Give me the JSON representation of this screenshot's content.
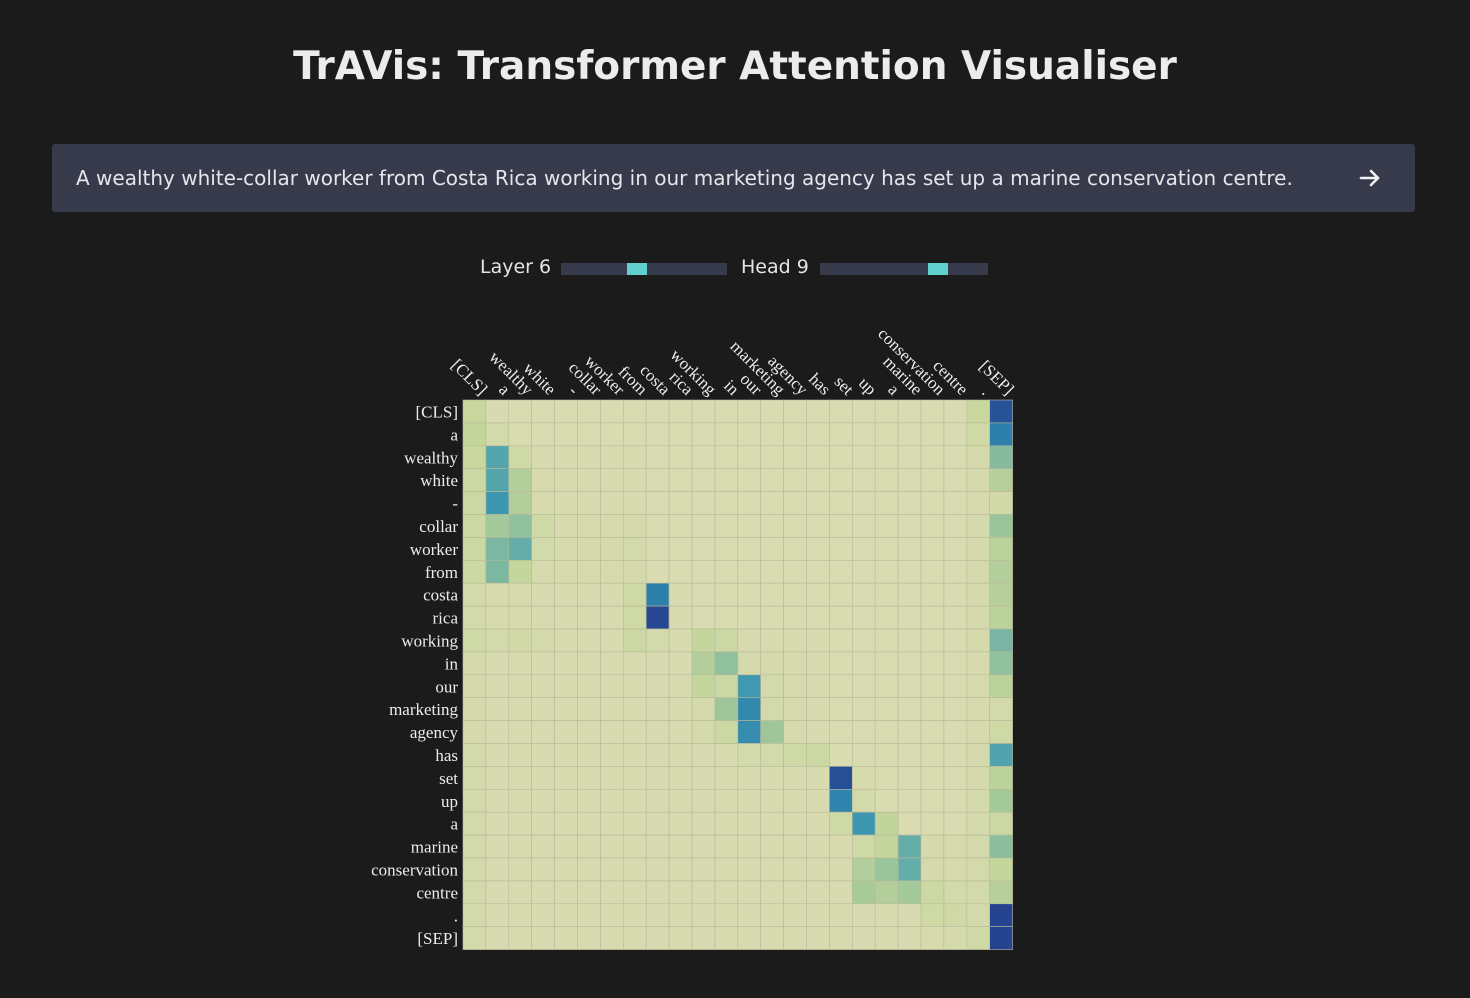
{
  "app": {
    "title": "TrAVis: Transformer Attention Visualiser"
  },
  "input": {
    "value": "A wealthy white-collar worker from Costa Rica working in our marketing agency has set up a marine conservation centre.",
    "submit_icon": "arrow-right-icon"
  },
  "controls": {
    "layer_label": "Layer 6",
    "head_label": "Head 9",
    "layer": {
      "value": 6,
      "min": 1,
      "max": 12
    },
    "head": {
      "value": 9,
      "min": 1,
      "max": 12
    },
    "accent_color": "#5fd0cc"
  },
  "chart_data": {
    "type": "heatmap",
    "title": "",
    "xlabel": "",
    "ylabel": "",
    "tokens": [
      "[CLS]",
      "a",
      "wealthy",
      "white",
      "-",
      "collar",
      "worker",
      "from",
      "costa",
      "rica",
      "working",
      "in",
      "our",
      "marketing",
      "agency",
      "has",
      "set",
      "up",
      "a",
      "marine",
      "conservation",
      "centre",
      ".",
      "[SEP]"
    ],
    "colorscale": [
      "#dcdcb4",
      "#c5d69b",
      "#a3c89a",
      "#7fb8a0",
      "#57a7ac",
      "#3a95b2",
      "#2a79aa",
      "#263f8e"
    ],
    "weights": [
      [
        0.12,
        0.03,
        0.02,
        0.02,
        0.02,
        0.02,
        0.02,
        0.02,
        0.02,
        0.02,
        0.02,
        0.02,
        0.02,
        0.02,
        0.02,
        0.02,
        0.02,
        0.02,
        0.02,
        0.02,
        0.02,
        0.02,
        0.12,
        0.95
      ],
      [
        0.15,
        0.06,
        0.02,
        0.02,
        0.02,
        0.02,
        0.02,
        0.02,
        0.02,
        0.02,
        0.02,
        0.02,
        0.02,
        0.02,
        0.02,
        0.02,
        0.02,
        0.02,
        0.02,
        0.02,
        0.02,
        0.02,
        0.08,
        0.82
      ],
      [
        0.12,
        0.58,
        0.08,
        0.03,
        0.03,
        0.03,
        0.03,
        0.03,
        0.02,
        0.02,
        0.02,
        0.02,
        0.02,
        0.02,
        0.02,
        0.02,
        0.02,
        0.02,
        0.02,
        0.02,
        0.02,
        0.02,
        0.05,
        0.4
      ],
      [
        0.1,
        0.58,
        0.22,
        0.04,
        0.03,
        0.03,
        0.03,
        0.03,
        0.02,
        0.02,
        0.02,
        0.02,
        0.02,
        0.02,
        0.02,
        0.02,
        0.02,
        0.02,
        0.02,
        0.02,
        0.02,
        0.02,
        0.05,
        0.2
      ],
      [
        0.1,
        0.7,
        0.22,
        0.04,
        0.03,
        0.03,
        0.03,
        0.03,
        0.02,
        0.02,
        0.02,
        0.02,
        0.02,
        0.02,
        0.02,
        0.02,
        0.02,
        0.02,
        0.02,
        0.02,
        0.02,
        0.02,
        0.04,
        0.07
      ],
      [
        0.1,
        0.28,
        0.36,
        0.08,
        0.04,
        0.04,
        0.04,
        0.05,
        0.02,
        0.02,
        0.02,
        0.02,
        0.02,
        0.02,
        0.02,
        0.02,
        0.02,
        0.02,
        0.02,
        0.02,
        0.02,
        0.02,
        0.05,
        0.32
      ],
      [
        0.1,
        0.44,
        0.52,
        0.06,
        0.04,
        0.05,
        0.05,
        0.06,
        0.02,
        0.02,
        0.02,
        0.02,
        0.02,
        0.02,
        0.02,
        0.02,
        0.02,
        0.02,
        0.02,
        0.02,
        0.02,
        0.02,
        0.05,
        0.18
      ],
      [
        0.1,
        0.44,
        0.14,
        0.04,
        0.04,
        0.04,
        0.04,
        0.05,
        0.02,
        0.02,
        0.02,
        0.02,
        0.02,
        0.02,
        0.02,
        0.02,
        0.02,
        0.02,
        0.02,
        0.02,
        0.02,
        0.02,
        0.05,
        0.22
      ],
      [
        0.06,
        0.04,
        0.04,
        0.03,
        0.03,
        0.03,
        0.03,
        0.08,
        0.82,
        0.03,
        0.02,
        0.02,
        0.02,
        0.02,
        0.02,
        0.02,
        0.02,
        0.02,
        0.02,
        0.02,
        0.02,
        0.02,
        0.05,
        0.2
      ],
      [
        0.06,
        0.04,
        0.04,
        0.03,
        0.03,
        0.03,
        0.03,
        0.08,
        0.98,
        0.03,
        0.02,
        0.02,
        0.02,
        0.02,
        0.02,
        0.02,
        0.02,
        0.02,
        0.02,
        0.02,
        0.02,
        0.02,
        0.05,
        0.18
      ],
      [
        0.08,
        0.06,
        0.07,
        0.05,
        0.03,
        0.03,
        0.03,
        0.1,
        0.06,
        0.03,
        0.14,
        0.1,
        0.03,
        0.03,
        0.03,
        0.03,
        0.02,
        0.02,
        0.02,
        0.02,
        0.02,
        0.02,
        0.05,
        0.45
      ],
      [
        0.05,
        0.03,
        0.03,
        0.03,
        0.03,
        0.03,
        0.03,
        0.03,
        0.03,
        0.03,
        0.22,
        0.36,
        0.05,
        0.05,
        0.04,
        0.03,
        0.02,
        0.02,
        0.02,
        0.02,
        0.02,
        0.02,
        0.04,
        0.36
      ],
      [
        0.05,
        0.03,
        0.03,
        0.03,
        0.03,
        0.03,
        0.03,
        0.03,
        0.03,
        0.03,
        0.14,
        0.1,
        0.68,
        0.06,
        0.04,
        0.03,
        0.02,
        0.02,
        0.02,
        0.02,
        0.02,
        0.02,
        0.04,
        0.18
      ],
      [
        0.05,
        0.03,
        0.03,
        0.03,
        0.03,
        0.03,
        0.03,
        0.03,
        0.03,
        0.03,
        0.05,
        0.3,
        0.78,
        0.06,
        0.04,
        0.03,
        0.02,
        0.02,
        0.02,
        0.02,
        0.02,
        0.02,
        0.04,
        0.06
      ],
      [
        0.05,
        0.03,
        0.03,
        0.03,
        0.03,
        0.03,
        0.03,
        0.03,
        0.03,
        0.03,
        0.05,
        0.1,
        0.76,
        0.3,
        0.04,
        0.03,
        0.02,
        0.02,
        0.02,
        0.02,
        0.02,
        0.02,
        0.04,
        0.08
      ],
      [
        0.06,
        0.03,
        0.03,
        0.03,
        0.03,
        0.03,
        0.03,
        0.03,
        0.03,
        0.03,
        0.03,
        0.03,
        0.06,
        0.06,
        0.08,
        0.1,
        0.02,
        0.02,
        0.02,
        0.02,
        0.02,
        0.02,
        0.05,
        0.6
      ],
      [
        0.06,
        0.03,
        0.03,
        0.03,
        0.03,
        0.03,
        0.03,
        0.03,
        0.03,
        0.03,
        0.03,
        0.03,
        0.03,
        0.03,
        0.03,
        0.03,
        0.96,
        0.04,
        0.02,
        0.02,
        0.02,
        0.02,
        0.05,
        0.18
      ],
      [
        0.06,
        0.03,
        0.03,
        0.03,
        0.03,
        0.03,
        0.03,
        0.03,
        0.03,
        0.03,
        0.03,
        0.03,
        0.03,
        0.03,
        0.03,
        0.03,
        0.8,
        0.06,
        0.02,
        0.02,
        0.02,
        0.02,
        0.05,
        0.28
      ],
      [
        0.06,
        0.03,
        0.03,
        0.03,
        0.03,
        0.03,
        0.03,
        0.03,
        0.03,
        0.03,
        0.03,
        0.03,
        0.03,
        0.03,
        0.03,
        0.03,
        0.08,
        0.7,
        0.16,
        0.02,
        0.02,
        0.02,
        0.05,
        0.1
      ],
      [
        0.06,
        0.03,
        0.03,
        0.03,
        0.03,
        0.03,
        0.03,
        0.03,
        0.03,
        0.03,
        0.03,
        0.03,
        0.03,
        0.03,
        0.03,
        0.03,
        0.03,
        0.08,
        0.14,
        0.52,
        0.05,
        0.04,
        0.06,
        0.38
      ],
      [
        0.06,
        0.03,
        0.03,
        0.03,
        0.03,
        0.03,
        0.03,
        0.03,
        0.03,
        0.03,
        0.03,
        0.03,
        0.03,
        0.03,
        0.03,
        0.03,
        0.03,
        0.22,
        0.32,
        0.52,
        0.05,
        0.04,
        0.06,
        0.14
      ],
      [
        0.06,
        0.03,
        0.03,
        0.03,
        0.03,
        0.03,
        0.03,
        0.03,
        0.03,
        0.03,
        0.03,
        0.03,
        0.03,
        0.03,
        0.03,
        0.03,
        0.03,
        0.26,
        0.22,
        0.28,
        0.1,
        0.06,
        0.06,
        0.2
      ],
      [
        0.06,
        0.03,
        0.03,
        0.03,
        0.03,
        0.03,
        0.03,
        0.03,
        0.03,
        0.03,
        0.03,
        0.03,
        0.03,
        0.03,
        0.03,
        0.03,
        0.03,
        0.03,
        0.03,
        0.03,
        0.08,
        0.08,
        0.06,
        0.99
      ],
      [
        0.06,
        0.03,
        0.03,
        0.03,
        0.03,
        0.03,
        0.03,
        0.03,
        0.03,
        0.03,
        0.03,
        0.03,
        0.03,
        0.03,
        0.03,
        0.03,
        0.03,
        0.03,
        0.03,
        0.03,
        0.04,
        0.05,
        0.08,
        0.99
      ]
    ]
  }
}
